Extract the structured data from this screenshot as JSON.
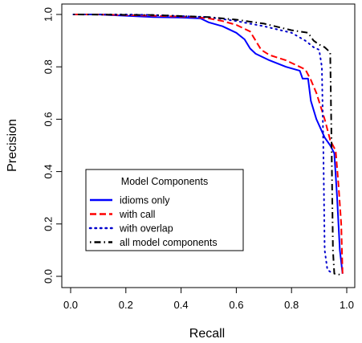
{
  "chart_data": {
    "type": "line",
    "title": "",
    "xlabel": "Recall",
    "ylabel": "Precision",
    "xlim": [
      0,
      1
    ],
    "ylim": [
      0,
      1
    ],
    "xticks": [
      "0.0",
      "0.2",
      "0.4",
      "0.6",
      "0.8",
      "1.0"
    ],
    "yticks": [
      "0.0",
      "0.2",
      "0.4",
      "0.6",
      "0.8",
      "1.0"
    ],
    "grid": false,
    "legend": {
      "title": "Model Components",
      "position": "bottom-left"
    },
    "series": [
      {
        "name": "idioms only",
        "color": "#0000ff",
        "dash": "solid",
        "points": [
          [
            0.01,
            1.0
          ],
          [
            0.1,
            1.0
          ],
          [
            0.2,
            0.995
          ],
          [
            0.3,
            0.99
          ],
          [
            0.4,
            0.988
          ],
          [
            0.47,
            0.985
          ],
          [
            0.5,
            0.97
          ],
          [
            0.55,
            0.955
          ],
          [
            0.6,
            0.93
          ],
          [
            0.63,
            0.905
          ],
          [
            0.65,
            0.87
          ],
          [
            0.67,
            0.85
          ],
          [
            0.72,
            0.825
          ],
          [
            0.78,
            0.8
          ],
          [
            0.83,
            0.785
          ],
          [
            0.84,
            0.755
          ],
          [
            0.86,
            0.755
          ],
          [
            0.87,
            0.67
          ],
          [
            0.89,
            0.6
          ],
          [
            0.92,
            0.53
          ],
          [
            0.94,
            0.5
          ],
          [
            0.955,
            0.47
          ],
          [
            0.965,
            0.3
          ],
          [
            0.975,
            0.1
          ],
          [
            0.985,
            0.01
          ]
        ]
      },
      {
        "name": "with call",
        "color": "#ff0000",
        "dash": "dashed",
        "points": [
          [
            0.01,
            1.0
          ],
          [
            0.1,
            1.0
          ],
          [
            0.3,
            0.995
          ],
          [
            0.45,
            0.99
          ],
          [
            0.5,
            0.985
          ],
          [
            0.55,
            0.975
          ],
          [
            0.6,
            0.96
          ],
          [
            0.65,
            0.935
          ],
          [
            0.67,
            0.9
          ],
          [
            0.69,
            0.865
          ],
          [
            0.72,
            0.845
          ],
          [
            0.78,
            0.825
          ],
          [
            0.83,
            0.8
          ],
          [
            0.85,
            0.79
          ],
          [
            0.87,
            0.75
          ],
          [
            0.89,
            0.7
          ],
          [
            0.92,
            0.6
          ],
          [
            0.94,
            0.52
          ],
          [
            0.96,
            0.48
          ],
          [
            0.97,
            0.35
          ],
          [
            0.98,
            0.2
          ],
          [
            0.985,
            0.01
          ]
        ]
      },
      {
        "name": "with overlap",
        "color": "#0000cc",
        "dash": "dotted",
        "points": [
          [
            0.01,
            1.0
          ],
          [
            0.2,
            1.0
          ],
          [
            0.3,
            0.998
          ],
          [
            0.5,
            0.99
          ],
          [
            0.6,
            0.975
          ],
          [
            0.7,
            0.955
          ],
          [
            0.8,
            0.93
          ],
          [
            0.85,
            0.9
          ],
          [
            0.88,
            0.875
          ],
          [
            0.9,
            0.865
          ],
          [
            0.91,
            0.8
          ],
          [
            0.915,
            0.5
          ],
          [
            0.92,
            0.1
          ],
          [
            0.93,
            0.025
          ],
          [
            0.95,
            0.01
          ]
        ]
      },
      {
        "name": "all model components",
        "color": "#000000",
        "dash": "dashdot",
        "points": [
          [
            0.01,
            1.0
          ],
          [
            0.3,
            0.998
          ],
          [
            0.5,
            0.99
          ],
          [
            0.6,
            0.98
          ],
          [
            0.7,
            0.965
          ],
          [
            0.8,
            0.94
          ],
          [
            0.86,
            0.93
          ],
          [
            0.88,
            0.9
          ],
          [
            0.9,
            0.885
          ],
          [
            0.92,
            0.875
          ],
          [
            0.94,
            0.855
          ],
          [
            0.945,
            0.5
          ],
          [
            0.95,
            0.1
          ],
          [
            0.955,
            0.01
          ],
          [
            0.985,
            0.005
          ]
        ]
      }
    ]
  }
}
